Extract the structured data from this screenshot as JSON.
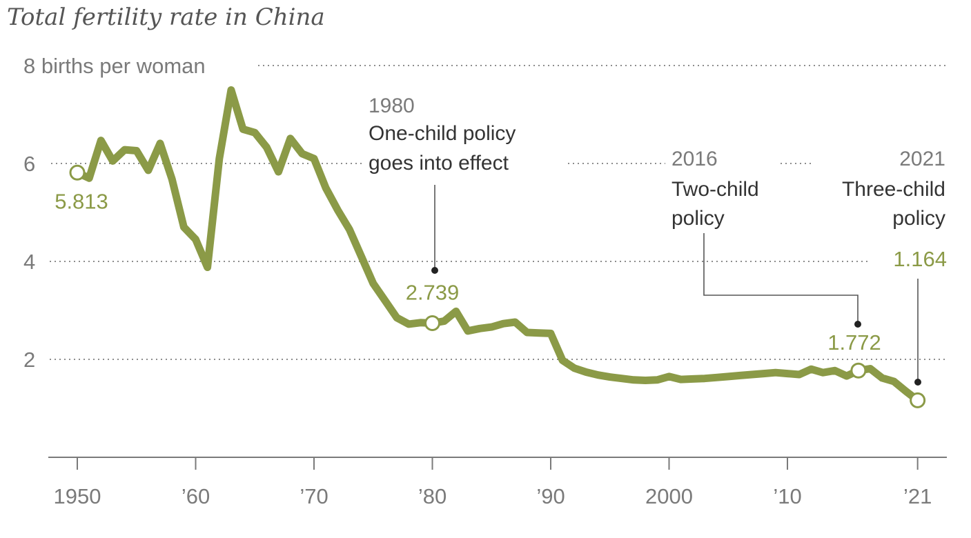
{
  "chart_data": {
    "type": "line",
    "title": "Total fertility rate in China",
    "ylabel": "births per woman",
    "xlim": [
      1950,
      2021
    ],
    "ylim": [
      0,
      8
    ],
    "grid": true,
    "y_ticks": [
      {
        "value": 8,
        "label": "8 births per woman"
      },
      {
        "value": 6,
        "label": "6"
      },
      {
        "value": 4,
        "label": "4"
      },
      {
        "value": 2,
        "label": "2"
      }
    ],
    "x_ticks": [
      {
        "value": 1950,
        "label": "1950"
      },
      {
        "value": 1960,
        "label": "’60"
      },
      {
        "value": 1970,
        "label": "’70"
      },
      {
        "value": 1980,
        "label": "’80"
      },
      {
        "value": 1990,
        "label": "’90"
      },
      {
        "value": 2000,
        "label": "2000"
      },
      {
        "value": 2010,
        "label": "’10"
      },
      {
        "value": 2021,
        "label": "’21"
      }
    ],
    "series": [
      {
        "color": "#8b9a47",
        "points": [
          [
            1950,
            5.813
          ],
          [
            1951,
            5.7
          ],
          [
            1952,
            6.47
          ],
          [
            1953,
            6.05
          ],
          [
            1954,
            6.28
          ],
          [
            1955,
            6.26
          ],
          [
            1956,
            5.86
          ],
          [
            1957,
            6.41
          ],
          [
            1958,
            5.68
          ],
          [
            1959,
            4.7
          ],
          [
            1960,
            4.45
          ],
          [
            1961,
            3.88
          ],
          [
            1962,
            6.1
          ],
          [
            1963,
            7.5
          ],
          [
            1964,
            6.7
          ],
          [
            1965,
            6.63
          ],
          [
            1966,
            6.33
          ],
          [
            1967,
            5.83
          ],
          [
            1968,
            6.51
          ],
          [
            1969,
            6.2
          ],
          [
            1970,
            6.1
          ],
          [
            1971,
            5.5
          ],
          [
            1972,
            5.05
          ],
          [
            1973,
            4.65
          ],
          [
            1974,
            4.1
          ],
          [
            1975,
            3.55
          ],
          [
            1976,
            3.2
          ],
          [
            1977,
            2.85
          ],
          [
            1978,
            2.72
          ],
          [
            1979,
            2.75
          ],
          [
            1980,
            2.739
          ],
          [
            1981,
            2.78
          ],
          [
            1982,
            2.98
          ],
          [
            1983,
            2.58
          ],
          [
            1984,
            2.63
          ],
          [
            1985,
            2.66
          ],
          [
            1986,
            2.73
          ],
          [
            1987,
            2.76
          ],
          [
            1988,
            2.55
          ],
          [
            1989,
            2.54
          ],
          [
            1990,
            2.53
          ],
          [
            1991,
            1.98
          ],
          [
            1992,
            1.82
          ],
          [
            1993,
            1.74
          ],
          [
            1994,
            1.68
          ],
          [
            1995,
            1.64
          ],
          [
            1996,
            1.61
          ],
          [
            1997,
            1.58
          ],
          [
            1998,
            1.57
          ],
          [
            1999,
            1.58
          ],
          [
            2000,
            1.65
          ],
          [
            2001,
            1.59
          ],
          [
            2002,
            1.6
          ],
          [
            2003,
            1.61
          ],
          [
            2004,
            1.63
          ],
          [
            2005,
            1.65
          ],
          [
            2006,
            1.67
          ],
          [
            2007,
            1.69
          ],
          [
            2008,
            1.71
          ],
          [
            2009,
            1.73
          ],
          [
            2010,
            1.71
          ],
          [
            2011,
            1.69
          ],
          [
            2012,
            1.8
          ],
          [
            2013,
            1.73
          ],
          [
            2014,
            1.77
          ],
          [
            2015,
            1.66
          ],
          [
            2016,
            1.772
          ],
          [
            2017,
            1.81
          ],
          [
            2018,
            1.62
          ],
          [
            2019,
            1.55
          ],
          [
            2020,
            1.35
          ],
          [
            2021,
            1.164
          ]
        ]
      }
    ],
    "highlighted_points": [
      {
        "x": 1950,
        "y": 5.813,
        "label": "5.813"
      },
      {
        "x": 1980,
        "y": 2.739,
        "label": "2.739"
      },
      {
        "x": 2016,
        "y": 1.772,
        "label": "1.772"
      },
      {
        "x": 2021,
        "y": 1.164,
        "label": "1.164"
      }
    ],
    "annotations": [
      {
        "year": "1980",
        "lines": [
          "One-child policy",
          "goes into effect"
        ]
      },
      {
        "year": "2016",
        "lines": [
          "Two-child",
          "policy"
        ]
      },
      {
        "year": "2021",
        "lines": [
          "Three-child",
          "policy"
        ]
      }
    ]
  },
  "colors": {
    "line": "#8b9a47",
    "value_label": "#8b9a47",
    "grid": "#8c8c8c",
    "axis": "#7a7a7a"
  }
}
